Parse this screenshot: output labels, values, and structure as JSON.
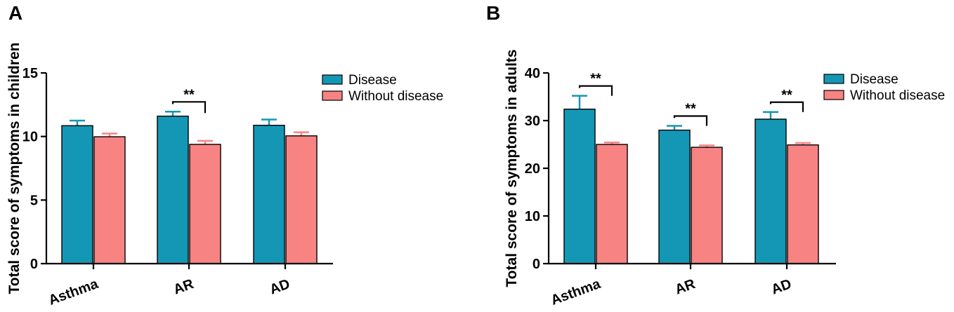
{
  "colors": {
    "disease": "#1497b4",
    "disease_err": "#1497b4",
    "without": "#f78383",
    "without_err": "#f78383",
    "axis": "#000000"
  },
  "chart_data": [
    {
      "panel": "A",
      "type": "bar",
      "ylabel": "Total score of symptoms in children",
      "categories": [
        "Asthma",
        "AR",
        "AD"
      ],
      "ylim": [
        0,
        15
      ],
      "yticks": [
        0,
        5,
        10,
        15
      ],
      "legend": [
        "Disease",
        "Without disease"
      ],
      "series": [
        {
          "name": "Disease",
          "values": [
            10.85,
            11.6,
            10.88
          ],
          "errors": [
            0.4,
            0.35,
            0.45
          ]
        },
        {
          "name": "Without disease",
          "values": [
            9.98,
            9.38,
            10.05
          ],
          "errors": [
            0.25,
            0.28,
            0.28
          ]
        }
      ],
      "significance": [
        {
          "category": "AR",
          "label": "**"
        }
      ]
    },
    {
      "panel": "B",
      "type": "bar",
      "ylabel": "Total score of symptoms in adults",
      "categories": [
        "Asthma",
        "AR",
        "AD"
      ],
      "ylim": [
        0,
        40
      ],
      "yticks": [
        0,
        10,
        20,
        30,
        40
      ],
      "legend": [
        "Disease",
        "Without disease"
      ],
      "series": [
        {
          "name": "Disease",
          "values": [
            32.4,
            28.0,
            30.3
          ],
          "errors": [
            2.8,
            0.9,
            1.5
          ]
        },
        {
          "name": "Without disease",
          "values": [
            25.0,
            24.4,
            24.9
          ],
          "errors": [
            0.4,
            0.4,
            0.4
          ]
        }
      ],
      "significance": [
        {
          "category": "Asthma",
          "label": "**"
        },
        {
          "category": "AR",
          "label": "**"
        },
        {
          "category": "AD",
          "label": "**"
        }
      ]
    }
  ]
}
